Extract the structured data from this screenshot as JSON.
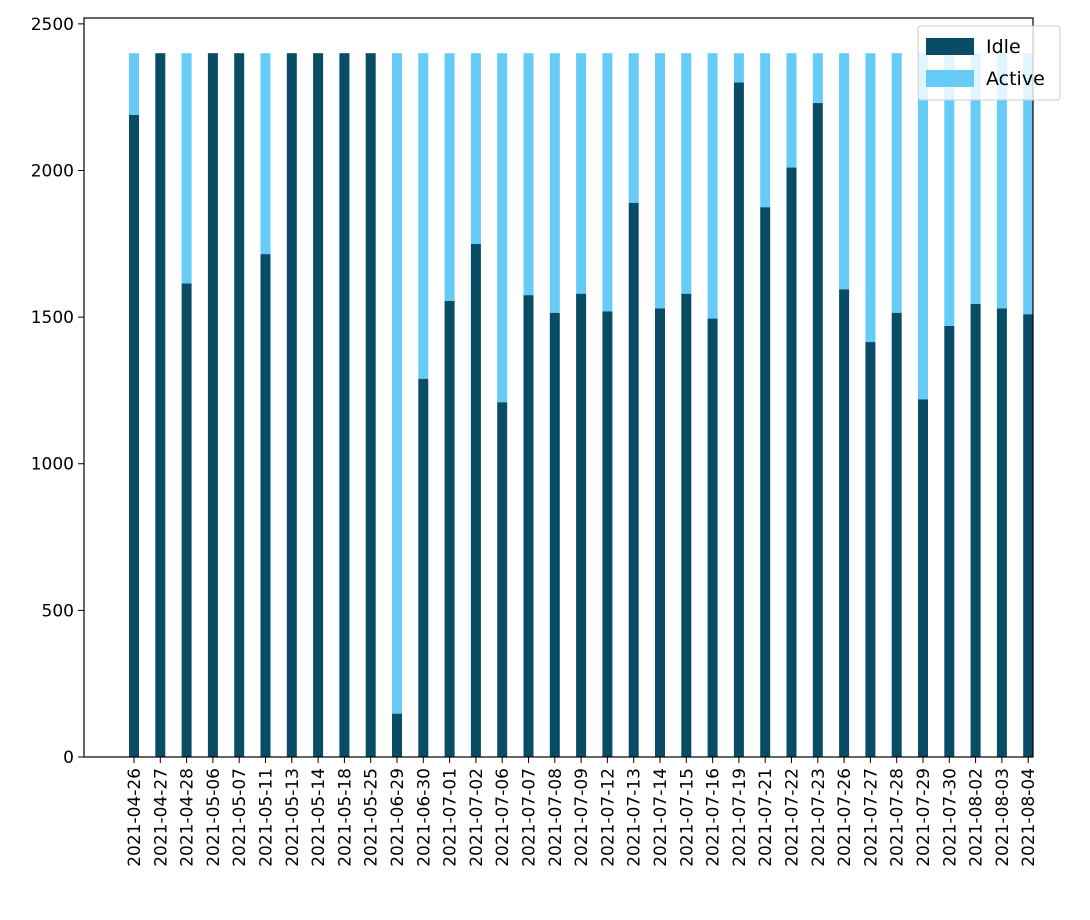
{
  "chart_data": {
    "type": "bar",
    "stacked": true,
    "title": "",
    "xlabel": "",
    "ylabel": "",
    "ylim": [
      0,
      2520
    ],
    "yticks": [
      0,
      500,
      1000,
      1500,
      2000,
      2500
    ],
    "categories": [
      "2021-04-26",
      "2021-04-27",
      "2021-04-28",
      "2021-05-06",
      "2021-05-07",
      "2021-05-11",
      "2021-05-13",
      "2021-05-14",
      "2021-05-18",
      "2021-05-25",
      "2021-06-29",
      "2021-06-30",
      "2021-07-01",
      "2021-07-02",
      "2021-07-06",
      "2021-07-07",
      "2021-07-08",
      "2021-07-09",
      "2021-07-12",
      "2021-07-13",
      "2021-07-14",
      "2021-07-15",
      "2021-07-16",
      "2021-07-19",
      "2021-07-21",
      "2021-07-22",
      "2021-07-23",
      "2021-07-26",
      "2021-07-27",
      "2021-07-28",
      "2021-07-29",
      "2021-07-30",
      "2021-08-02",
      "2021-08-03",
      "2021-08-04"
    ],
    "series": [
      {
        "name": "Idle",
        "color": "#084c66",
        "values": [
          2190,
          2400,
          1615,
          2400,
          2400,
          1715,
          2400,
          2400,
          2400,
          2400,
          148,
          1290,
          1555,
          1750,
          1210,
          1575,
          1515,
          1580,
          1520,
          1890,
          1530,
          1580,
          1495,
          2300,
          1875,
          2010,
          2230,
          1595,
          1415,
          1515,
          1220,
          1470,
          1545,
          1530,
          1510
        ]
      },
      {
        "name": "Active",
        "color": "#66ccf7",
        "values": [
          210,
          0,
          785,
          0,
          0,
          685,
          0,
          0,
          0,
          0,
          2252,
          1110,
          845,
          650,
          1190,
          825,
          885,
          820,
          880,
          510,
          870,
          820,
          905,
          100,
          525,
          390,
          170,
          805,
          985,
          885,
          1180,
          930,
          855,
          870,
          890
        ]
      }
    ],
    "legend": {
      "position": "top-right",
      "entries": [
        "Idle",
        "Active"
      ]
    },
    "grid": false
  }
}
